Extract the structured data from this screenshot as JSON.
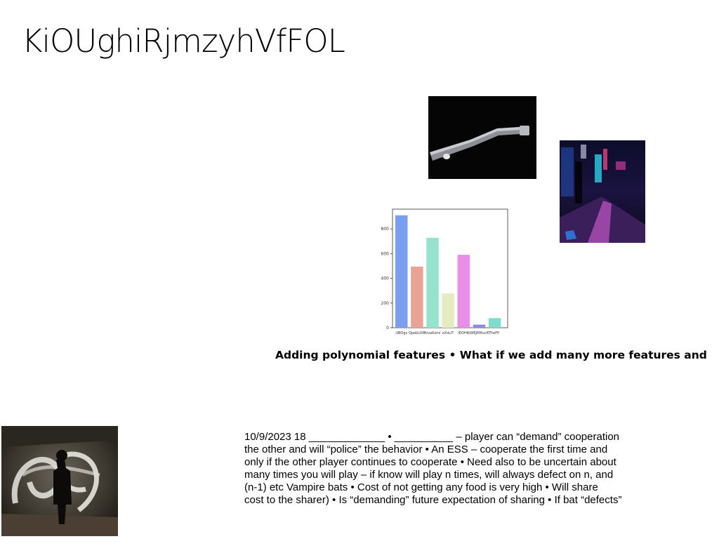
{
  "title": "KiOUghiRjmzyhVfFOL",
  "heading": "Adding polynomial features • What if we add many more features and",
  "body_lines": [
    "10/9/2023 18 _____________ • __________ – player can “demand” cooperation",
    "the other  and will “police” the behavior • An ESS – cooperate the first time and",
    "only if the other player continues to cooperate • Need also to be uncertain about",
    "many times you will play – if know will play n times, will always defect on n, and",
    "(n-1) etc Vampire bats • Cost of not getting any food is very  high • Will share",
    "cost to the sharer) • Is “demanding” future expectation of sharing • If bat “defects”"
  ],
  "chart_data": {
    "type": "bar",
    "categories": [
      "UBOgs",
      "QpebUXB",
      "hivaKzmi",
      "eXsLIT",
      "IEOHC",
      "nWEJRMucRT",
      "YwFP"
    ],
    "values": [
      910,
      495,
      728,
      278,
      590,
      25,
      78
    ],
    "yticks": [
      0,
      200,
      400,
      600,
      800
    ],
    "ylim": [
      0,
      960
    ],
    "colors": [
      "#7b9ef0",
      "#e8a394",
      "#94e3cc",
      "#e6ebc2",
      "#e88de8",
      "#8a8ae8",
      "#7fdccc"
    ]
  }
}
